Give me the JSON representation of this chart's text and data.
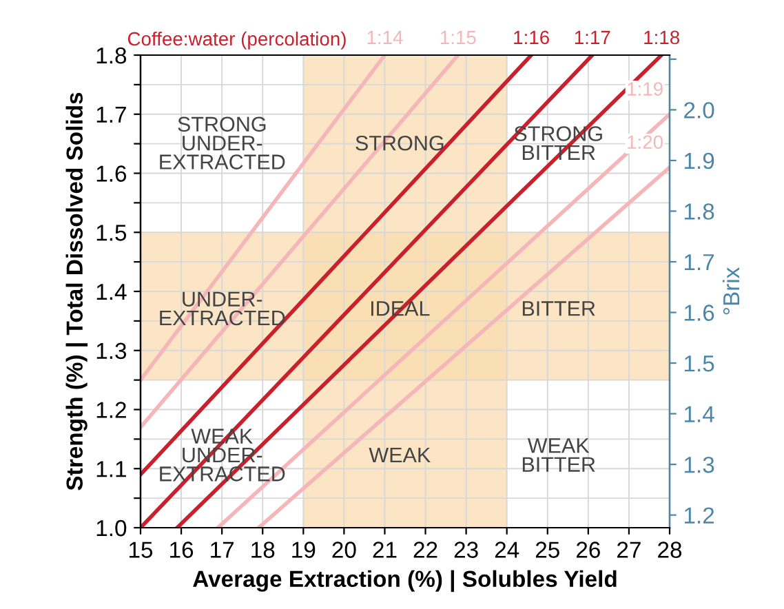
{
  "chart_data": {
    "type": "line",
    "title": "Coffee:water (percolation)",
    "xlabel": "Average Extraction (%) | Solubles Yield",
    "ylabel": "Strength (%) | Total Dissolved Solids",
    "y2label": "°Brix",
    "xlim": [
      15,
      28
    ],
    "xticks": [
      15,
      16,
      17,
      18,
      19,
      20,
      21,
      22,
      23,
      24,
      25,
      26,
      27,
      28
    ],
    "ylim": [
      1.0,
      1.8
    ],
    "yticks": [
      {
        "value": 1.0,
        "label": "1.0"
      },
      {
        "value": 1.05,
        "label": null
      },
      1.1,
      {
        "value": 1.15,
        "label": null
      },
      1.2,
      {
        "value": 1.25,
        "label": null
      },
      1.3,
      {
        "value": 1.35,
        "label": null
      },
      1.4,
      {
        "value": 1.45,
        "label": null
      },
      1.5,
      {
        "value": 1.55,
        "label": null
      },
      1.6,
      {
        "value": 1.65,
        "label": null
      },
      1.7,
      {
        "value": 1.75,
        "label": null
      },
      1.8
    ],
    "y2lim": [
      1.175,
      2.108
    ],
    "y2ticks": [
      1.2,
      1.3,
      1.4,
      1.5,
      1.6,
      1.7,
      1.8,
      1.9,
      {
        "value": 2.0,
        "label": "2.0"
      },
      {
        "value": 2.1,
        "label": null
      }
    ],
    "grid": true,
    "marker": "none",
    "line_style": "solid",
    "legend": false,
    "series": [
      {
        "name": "1:14",
        "color": "#f4b6b8",
        "x": [
          15,
          21.0
        ],
        "values": [
          1.25,
          1.8
        ]
      },
      {
        "name": "1:15",
        "color": "#f4b6b8",
        "x": [
          15,
          22.8
        ],
        "values": [
          1.17,
          1.8
        ]
      },
      {
        "name": "1:16",
        "color": "#c8202c",
        "x": [
          15,
          24.6
        ],
        "values": [
          1.09,
          1.8
        ]
      },
      {
        "name": "1:17",
        "color": "#c8202c",
        "x": [
          15,
          26.1
        ],
        "values": [
          1.0,
          1.8
        ]
      },
      {
        "name": "1:18",
        "color": "#c8202c",
        "x": [
          15.9,
          27.8
        ],
        "values": [
          1.0,
          1.8
        ]
      },
      {
        "name": "1:19",
        "color": "#f4b6b8",
        "x": [
          16.9,
          28
        ],
        "values": [
          1.0,
          1.7
        ]
      },
      {
        "name": "1:20",
        "color": "#f4b6b8",
        "x": [
          17.9,
          28
        ],
        "values": [
          1.0,
          1.61
        ]
      }
    ],
    "bands": [
      {
        "axis": "x",
        "from": 19,
        "to": 24,
        "color": "#f9dcb0"
      },
      {
        "axis": "y",
        "from": 1.25,
        "to": 1.5,
        "color": "#f9dcb0"
      }
    ],
    "annotations": [
      "STRONG\nUNDER-\nEXTRACTED",
      "STRONG",
      "STRONG\nBITTER",
      "UNDER-\nEXTRACTED",
      "IDEAL",
      "BITTER",
      "WEAK\nUNDER-\nEXTRACTED",
      "WEAK",
      "WEAK\nBITTER"
    ]
  }
}
